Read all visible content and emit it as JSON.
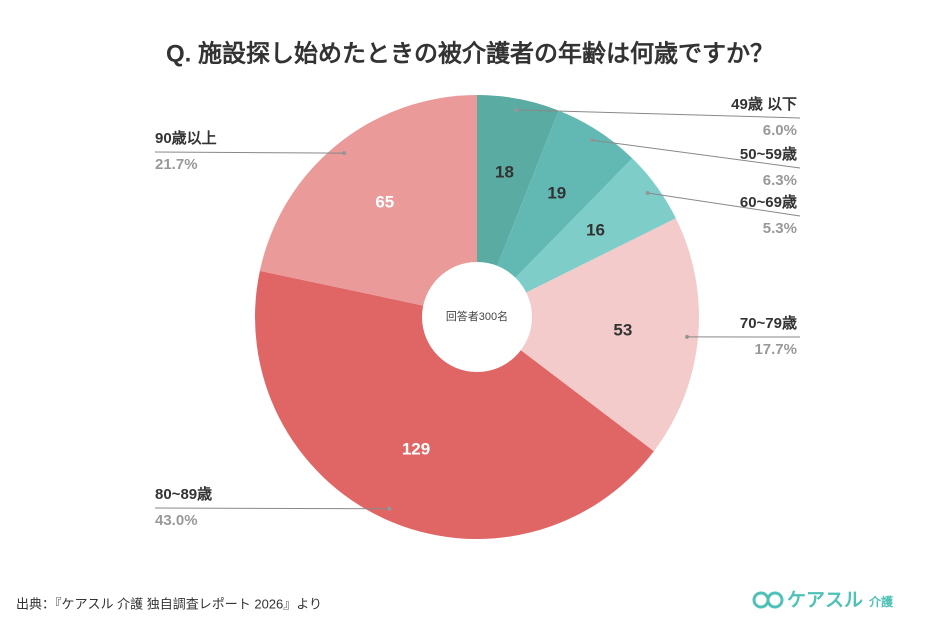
{
  "chart_data": {
    "type": "pie",
    "title": "Q. 施設探し始めたときの被介護者の年齢は何歳ですか？",
    "categories": [
      "49歳 以下",
      "50~59歳",
      "60~69歳",
      "70~79歳",
      "80~89歳",
      "90歳以上"
    ],
    "values": [
      18,
      19,
      16,
      53,
      129,
      65
    ],
    "share_labels": [
      "6.0%",
      "6.3%",
      "5.3%",
      "17.7%",
      "43.0%",
      "21.7%"
    ],
    "colors": [
      "#5aaba1",
      "#62b9b4",
      "#7ecdc8",
      "#f4cbcb",
      "#e06666",
      "#e99a99"
    ],
    "center_label": "回答者300名",
    "source": "出典：『ケアスル 介護 独自調査レポート 2026』より",
    "logo": {
      "brand": "ケアスル",
      "sub": "介護"
    }
  }
}
